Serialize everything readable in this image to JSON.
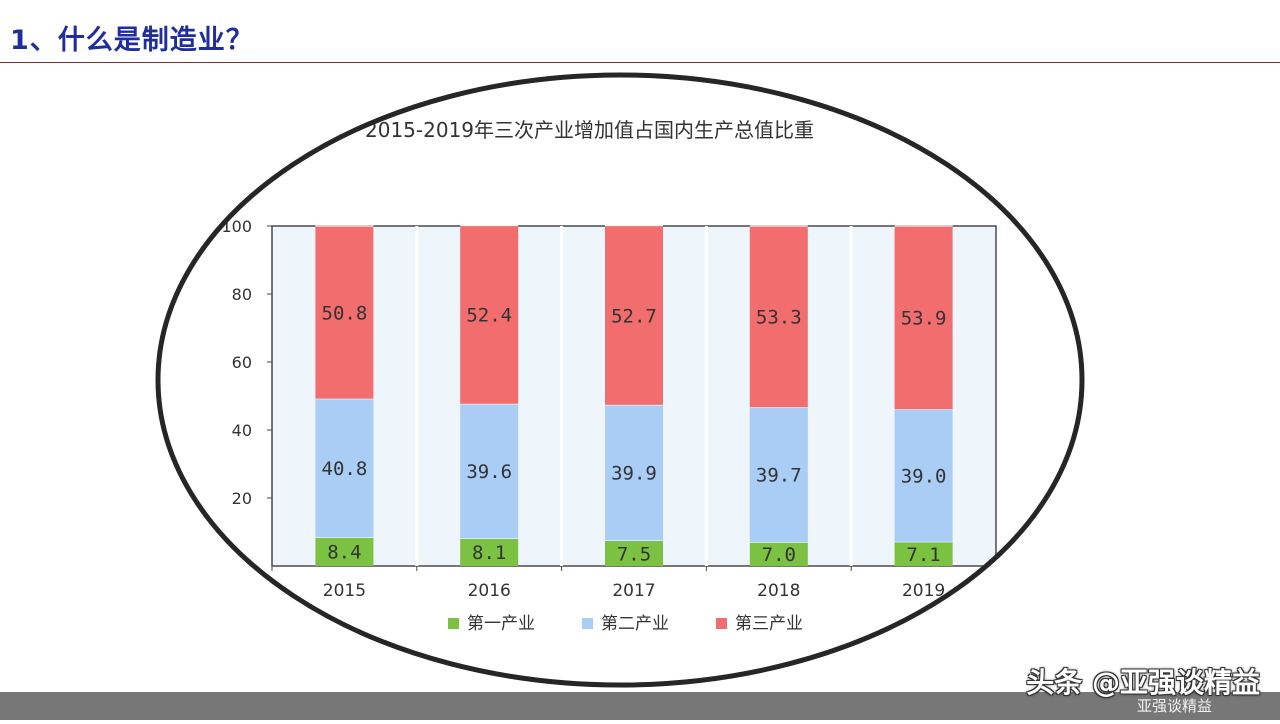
{
  "slide": {
    "title": "1、什么是制造业？"
  },
  "chart_data": {
    "type": "bar",
    "stacked": true,
    "title": "2015-2019年三次产业增加值占国内生产总值比重",
    "categories": [
      "2015",
      "2016",
      "2017",
      "2018",
      "2019"
    ],
    "series": [
      {
        "name": "第一产业",
        "color": "#7cc242",
        "values": [
          8.4,
          8.1,
          7.5,
          7.0,
          7.1
        ],
        "labels": [
          "8.4",
          "8.1",
          "7.5",
          "7.0",
          "7.1"
        ]
      },
      {
        "name": "第二产业",
        "color": "#a9cdf5",
        "values": [
          40.8,
          39.6,
          39.9,
          39.7,
          39.0
        ],
        "labels": [
          "40.8",
          "39.6",
          "39.9",
          "39.7",
          "39.0"
        ]
      },
      {
        "name": "第三产业",
        "color": "#f26d6d",
        "values": [
          50.8,
          52.4,
          52.7,
          53.3,
          53.9
        ],
        "labels": [
          "50.8",
          "52.4",
          "52.7",
          "53.3",
          "53.9"
        ]
      }
    ],
    "ylim": [
      0,
      100
    ],
    "yticks": [
      "20",
      "40",
      "60",
      "80",
      "100"
    ],
    "legend_position": "bottom",
    "xlabel": "",
    "ylabel": ""
  },
  "footer": {
    "text": "亚强谈精益"
  },
  "watermark": {
    "text": "头条 @亚强谈精益"
  }
}
